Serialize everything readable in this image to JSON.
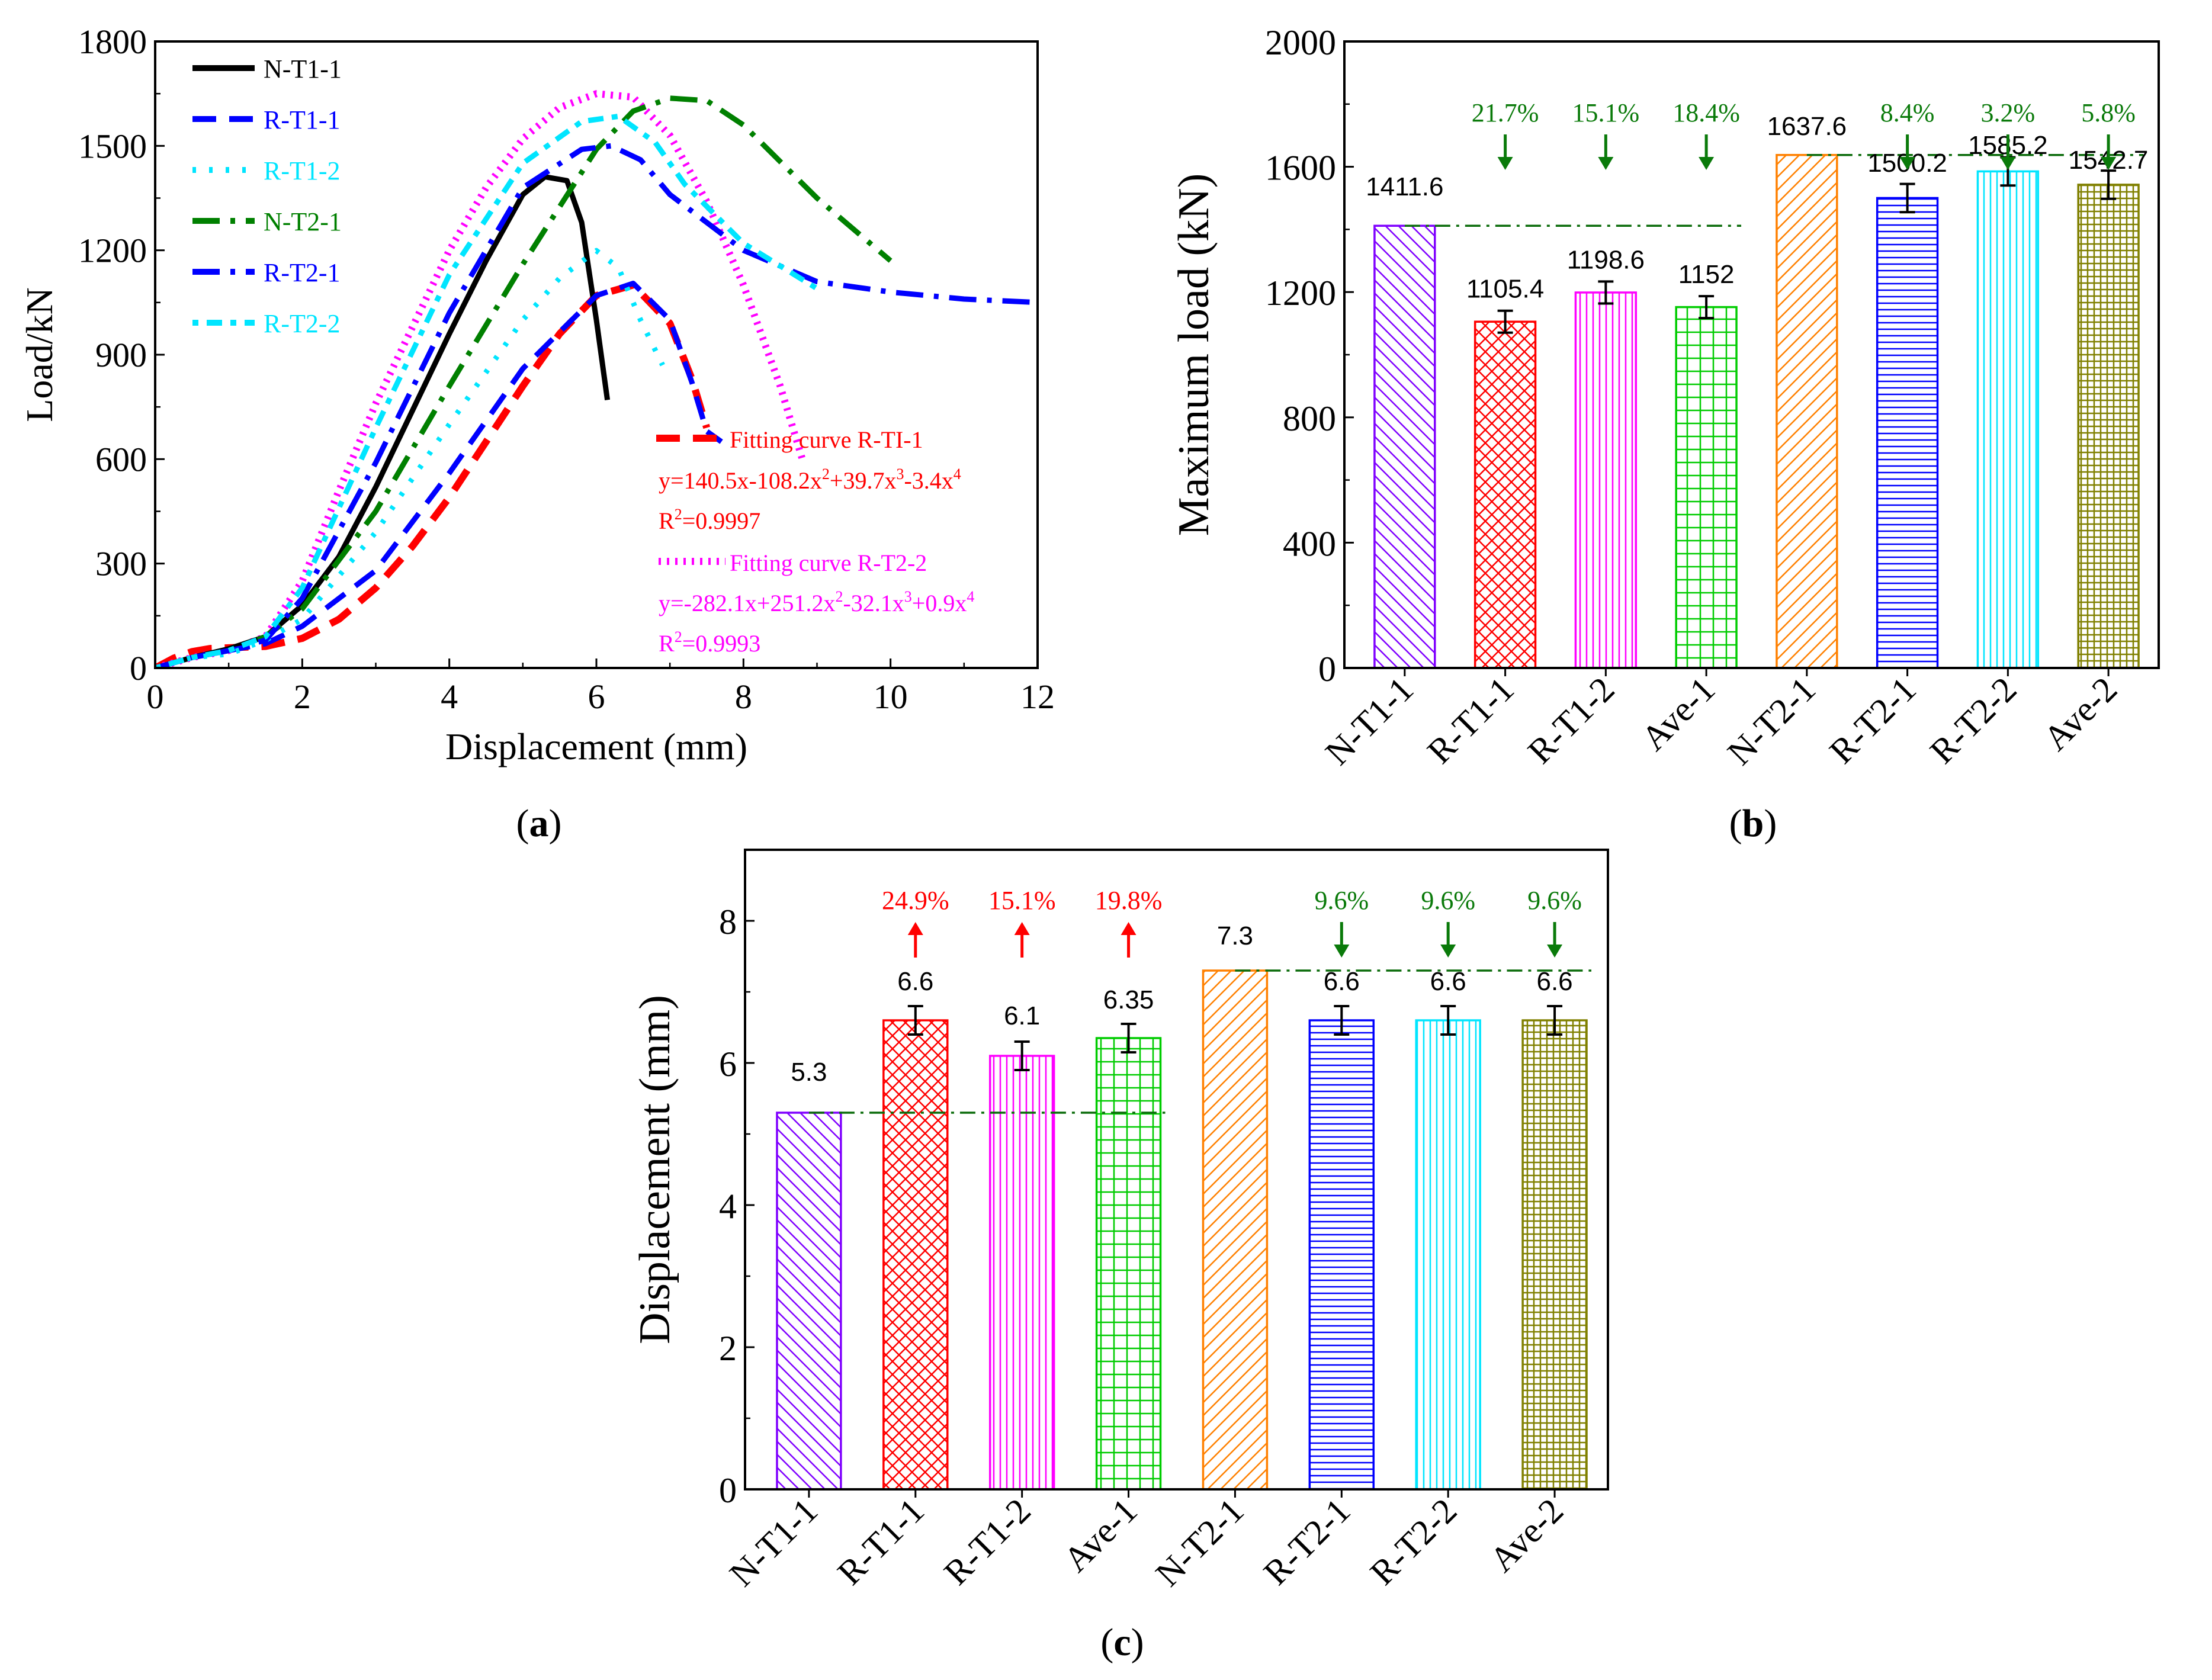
{
  "figure": {
    "panels": [
      {
        "id": "a",
        "caption_letter": "a"
      },
      {
        "id": "b",
        "caption_letter": "b"
      },
      {
        "id": "c",
        "caption_letter": "c"
      }
    ],
    "caption_open": "(",
    "caption_close": ")"
  },
  "colors": {
    "black": "#000000",
    "red": "#ff0000",
    "blue": "#0000ff",
    "cyan": "#00e5ff",
    "green": "#008000",
    "magenta": "#ff00ff",
    "purple": "#7f00ff",
    "orange": "#ff8000",
    "olive": "#808000"
  },
  "chart_data": [
    {
      "id": "a",
      "type": "line",
      "xlabel": "Displacement (mm)",
      "ylabel": "Load/kN",
      "xlim": [
        0,
        12
      ],
      "ylim": [
        0,
        1800
      ],
      "xticks": [
        "0",
        "2",
        "4",
        "6",
        "8",
        "10",
        "12"
      ],
      "yticks": [
        "0",
        "300",
        "600",
        "900",
        "1200",
        "1500",
        "1800"
      ],
      "series": [
        {
          "name": "N-T1-1",
          "color": "#000000",
          "dash": "solid",
          "x": [
            0,
            0.5,
            1,
            1.5,
            2,
            2.5,
            3,
            3.5,
            4,
            4.5,
            5,
            5.3,
            5.6,
            5.8,
            6.0,
            6.15
          ],
          "y": [
            0,
            30,
            55,
            90,
            180,
            320,
            520,
            740,
            960,
            1170,
            1360,
            1411,
            1400,
            1280,
            1000,
            770
          ]
        },
        {
          "name": "R-T1-1",
          "color": "#0000ff",
          "dash": "dash",
          "x": [
            0,
            0.5,
            1,
            1.5,
            2,
            3,
            4,
            5,
            6,
            6.5,
            7,
            7.3,
            7.5,
            7.7
          ],
          "y": [
            0,
            30,
            50,
            70,
            120,
            280,
            560,
            860,
            1070,
            1105,
            1000,
            820,
            680,
            650
          ]
        },
        {
          "name": "R-T1-2",
          "color": "#00e5ff",
          "dash": "dot",
          "x": [
            0,
            0.5,
            1,
            1.5,
            2,
            3,
            4,
            5,
            5.5,
            6.0,
            6.3,
            6.6,
            6.9
          ],
          "y": [
            0,
            30,
            40,
            80,
            140,
            390,
            700,
            1000,
            1120,
            1199,
            1150,
            1000,
            870
          ]
        },
        {
          "name": "N-T2-1",
          "color": "#008000",
          "dash": "dashdot",
          "x": [
            0,
            0.5,
            1,
            1.5,
            2,
            3,
            4,
            5,
            6,
            6.5,
            7,
            7.5,
            8,
            9,
            10
          ],
          "y": [
            0,
            30,
            50,
            90,
            170,
            450,
            810,
            1160,
            1490,
            1600,
            1637,
            1630,
            1560,
            1350,
            1170
          ]
        },
        {
          "name": "R-T2-1",
          "color": "#0000ff",
          "dash": "dashdot",
          "x": [
            0,
            0.5,
            1,
            1.5,
            2,
            3,
            4,
            5,
            5.8,
            6.2,
            6.6,
            7,
            8,
            9,
            10,
            11,
            12
          ],
          "y": [
            0,
            30,
            50,
            80,
            200,
            590,
            1020,
            1380,
            1490,
            1500,
            1460,
            1360,
            1200,
            1110,
            1080,
            1060,
            1050
          ]
        },
        {
          "name": "R-T2-2",
          "color": "#00e5ff",
          "dash": "dotdash",
          "x": [
            0,
            0.5,
            1,
            1.5,
            2,
            3,
            4,
            5,
            5.8,
            6.3,
            6.8,
            7.2,
            8,
            9
          ],
          "y": [
            0,
            30,
            50,
            90,
            230,
            690,
            1130,
            1450,
            1570,
            1585,
            1510,
            1390,
            1220,
            1090
          ]
        }
      ],
      "fits": [
        {
          "name": "Fitting curve R-TI-1",
          "color": "#ff0000",
          "dash": "dash",
          "x": [
            0,
            0.25,
            0.5,
            0.75,
            1.0,
            1.5,
            2.0,
            2.5,
            3.0,
            3.5,
            4.0,
            4.5,
            5.0,
            5.5,
            6.0,
            6.5,
            7.0,
            7.3,
            7.5
          ],
          "y": [
            0,
            28,
            47,
            56,
            58,
            62,
            85,
            140,
            230,
            350,
            490,
            650,
            810,
            960,
            1070,
            1100,
            990,
            830,
            690
          ]
        },
        {
          "name": "Fitting curve R-T2-2",
          "color": "#ff00ff",
          "dash": "dotted",
          "x": [
            0,
            0.5,
            1.0,
            1.5,
            2.0,
            2.5,
            3.0,
            3.5,
            4.0,
            4.5,
            5.0,
            5.5,
            6.0,
            6.5,
            7.0,
            7.5,
            8.0,
            8.5,
            8.8
          ],
          "y": [
            0,
            30,
            50,
            90,
            250,
            510,
            760,
            980,
            1200,
            1380,
            1520,
            1610,
            1650,
            1640,
            1530,
            1340,
            1100,
            810,
            600
          ]
        }
      ],
      "annotations": [
        {
          "line1": "y=140.5x-108.2x",
          "sup1": "2",
          "line1b": "+39.7x",
          "sup1b": "3",
          "line1c": "-3.4x",
          "sup1c": "4"
        },
        {
          "r2_prefix": "R",
          "r2_sup": "2",
          "r2_value": "=0.9997"
        },
        {
          "line1": "y=-282.1x+251.2x",
          "sup1": "2",
          "line1b": "-32.1x",
          "sup1b": "3",
          "line1c": "+0.9x",
          "sup1c": "4"
        },
        {
          "r2_prefix": "R",
          "r2_sup": "2",
          "r2_value": "=0.9993"
        }
      ]
    },
    {
      "id": "b",
      "type": "bar",
      "ylabel": "Maximum load (kN)",
      "ylim": [
        0,
        2000
      ],
      "yticks": [
        "0",
        "400",
        "800",
        "1200",
        "1600",
        "2000"
      ],
      "categories": [
        "N-T1-1",
        "R-T1-1",
        "R-T1-2",
        "Ave-1",
        "N-T2-1",
        "R-T2-1",
        "R-T2-2",
        "Ave-2"
      ],
      "values": [
        1411.6,
        1105.4,
        1198.6,
        1152,
        1637.6,
        1500.2,
        1585.2,
        1542.7
      ],
      "labels": [
        "1411.6",
        "1105.4",
        "1198.6",
        "1152",
        "1637.6",
        "1500.2",
        "1585.2",
        "1542.7"
      ],
      "errors": [
        0,
        35,
        35,
        35,
        0,
        45,
        45,
        45
      ],
      "colors": [
        "#7f00ff",
        "#ff0000",
        "#ff00ff",
        "#00cc00",
        "#ff8000",
        "#0000ff",
        "#00e5ff",
        "#808000"
      ],
      "patterns": [
        "diag-back",
        "cross",
        "vertical",
        "grid",
        "diag-fwd",
        "horizontal",
        "vertical",
        "grid-fine"
      ],
      "reference_lines": [
        {
          "value": 1411.6,
          "from": 0,
          "to": 3
        },
        {
          "value": 1637.6,
          "from": 4,
          "to": 7
        }
      ],
      "changes": [
        {
          "index": 1,
          "text": "21.7%",
          "direction": "down"
        },
        {
          "index": 2,
          "text": "15.1%",
          "direction": "down"
        },
        {
          "index": 3,
          "text": "18.4%",
          "direction": "down"
        },
        {
          "index": 5,
          "text": "8.4%",
          "direction": "down"
        },
        {
          "index": 6,
          "text": "3.2%",
          "direction": "down"
        },
        {
          "index": 7,
          "text": "5.8%",
          "direction": "down"
        }
      ]
    },
    {
      "id": "c",
      "type": "bar",
      "ylabel": "Displacement (mm)",
      "ylim": [
        0,
        9
      ],
      "yticks": [
        "0",
        "2",
        "4",
        "6",
        "8"
      ],
      "categories": [
        "N-T1-1",
        "R-T1-1",
        "R-T1-2",
        "Ave-1",
        "N-T2-1",
        "R-T2-1",
        "R-T2-2",
        "Ave-2"
      ],
      "values": [
        5.3,
        6.6,
        6.1,
        6.35,
        7.3,
        6.6,
        6.6,
        6.6
      ],
      "labels": [
        "5.3",
        "6.6",
        "6.1",
        "6.35",
        "7.3",
        "6.6",
        "6.6",
        "6.6"
      ],
      "errors": [
        0,
        0.2,
        0.2,
        0.2,
        0,
        0.2,
        0.2,
        0.2
      ],
      "colors": [
        "#7f00ff",
        "#ff0000",
        "#ff00ff",
        "#00cc00",
        "#ff8000",
        "#0000ff",
        "#00e5ff",
        "#808000"
      ],
      "patterns": [
        "diag-back",
        "cross",
        "vertical",
        "grid",
        "diag-fwd",
        "horizontal",
        "vertical",
        "grid-fine"
      ],
      "reference_lines": [
        {
          "value": 5.3,
          "from": 0,
          "to": 3
        },
        {
          "value": 7.3,
          "from": 4,
          "to": 7
        }
      ],
      "changes": [
        {
          "index": 1,
          "text": "24.9%",
          "direction": "up"
        },
        {
          "index": 2,
          "text": "15.1%",
          "direction": "up"
        },
        {
          "index": 3,
          "text": "19.8%",
          "direction": "up"
        },
        {
          "index": 5,
          "text": "9.6%",
          "direction": "down"
        },
        {
          "index": 6,
          "text": "9.6%",
          "direction": "down"
        },
        {
          "index": 7,
          "text": "9.6%",
          "direction": "down"
        }
      ]
    }
  ]
}
